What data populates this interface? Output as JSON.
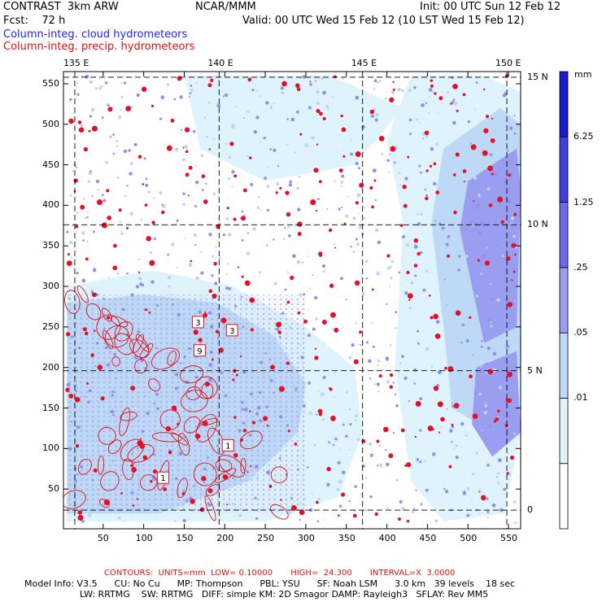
{
  "header": {
    "title": "CONTRAST  3km ARW",
    "center": "NCAR/MMM",
    "init": "Init: 00 UTC Sun 12 Feb 12",
    "fcst": "Fcst:    72 h",
    "valid": "Valid: 00 UTC Wed 15 Feb 12 (10 LST Wed 15 Feb 12)",
    "field1": "Column-integ. cloud hydrometeors",
    "field2": "Column-integ. precip. hydrometeors"
  },
  "chart_data": {
    "type": "heatmap",
    "title": "Column-integ. cloud hydrometeors (shaded) / Column-integ. precip. hydrometeors (contours)",
    "x_grid_ticks": [
      50,
      100,
      150,
      200,
      250,
      300,
      350,
      400,
      450,
      500,
      550
    ],
    "y_grid_ticks": [
      50,
      100,
      150,
      200,
      250,
      300,
      350,
      400,
      450,
      500,
      550
    ],
    "xlim": [
      1,
      565
    ],
    "ylim": [
      1,
      565
    ],
    "lon_labels": [
      {
        "label": "135 E",
        "grid_x": 15
      },
      {
        "label": "140 E",
        "grid_x": 193
      },
      {
        "label": "145 E",
        "grid_x": 370
      },
      {
        "label": "150 E",
        "grid_x": 548
      }
    ],
    "lat_labels": [
      {
        "label": "15 N",
        "grid_y": 558
      },
      {
        "label": "10 N",
        "grid_y": 376
      },
      {
        "label": "5 N",
        "grid_y": 196
      },
      {
        "label": "0",
        "grid_y": 24
      }
    ],
    "colorbar": {
      "units": "mm",
      "levels": [
        "6.25",
        "1.25",
        ".25",
        ".05",
        ".01"
      ],
      "colors": [
        "#ffffff",
        "#def3fb",
        "#bdd9f5",
        "#9a9ef0",
        "#6b6be8",
        "#3f3fe0",
        "#1a1ad0"
      ]
    },
    "contour_box_labels": [
      {
        "label": "3",
        "grid_x": 167,
        "grid_y": 256
      },
      {
        "label": "3",
        "grid_x": 209,
        "grid_y": 246
      },
      {
        "label": "9",
        "grid_x": 169,
        "grid_y": 221
      },
      {
        "label": "1",
        "grid_x": 204,
        "grid_y": 104
      },
      {
        "label": "1",
        "grid_x": 124,
        "grid_y": 64
      }
    ]
  },
  "contours_info": "CONTOURS:  UNITS=mm  LOW= 0.10000       HIGH=  24.300       INTERVAL=X  3.0000",
  "model_info": {
    "line1": "Model Info: V3.5      CU: No Cu      MP: Thompson      PBL: YSU      SF: Noah LSM      3.0 km   39 levels    18 sec",
    "line2": "LW: RRTMG    SW: RRTMG   DIFF: simple KM: 2D Smagor DAMP: Rayleigh3   SFLAY: Rev MM5"
  }
}
